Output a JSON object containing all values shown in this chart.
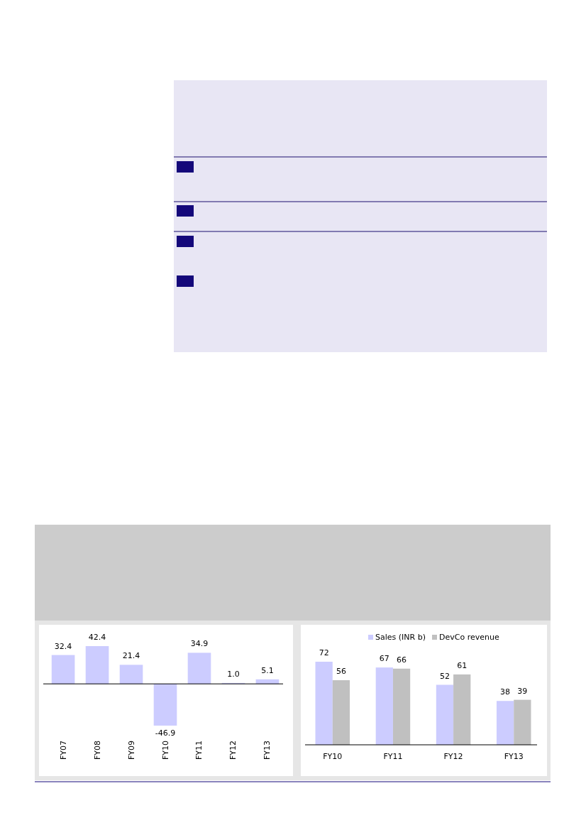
{
  "chart_data": [
    {
      "type": "bar",
      "categories": [
        "FY07",
        "FY08",
        "FY09",
        "FY10",
        "FY11",
        "FY12",
        "FY13"
      ],
      "values": [
        32.4,
        42.4,
        21.4,
        -46.9,
        34.9,
        1.0,
        5.1
      ],
      "color": "#ccccff",
      "value_labels": [
        "32.4",
        "42.4",
        "21.4",
        "-46.9",
        "34.9",
        "1.0",
        "5.1"
      ],
      "legend": false
    },
    {
      "type": "bar",
      "categories": [
        "FY10",
        "FY11",
        "FY12",
        "FY13"
      ],
      "series": [
        {
          "name": "Sales (INR b)",
          "color": "#ccccff",
          "values": [
            72,
            67,
            52,
            38
          ]
        },
        {
          "name": "DevCo revenue",
          "color": "#c0c0c0",
          "values": [
            56,
            66,
            61,
            39
          ]
        }
      ],
      "data_labels": true,
      "legend": "top"
    }
  ]
}
